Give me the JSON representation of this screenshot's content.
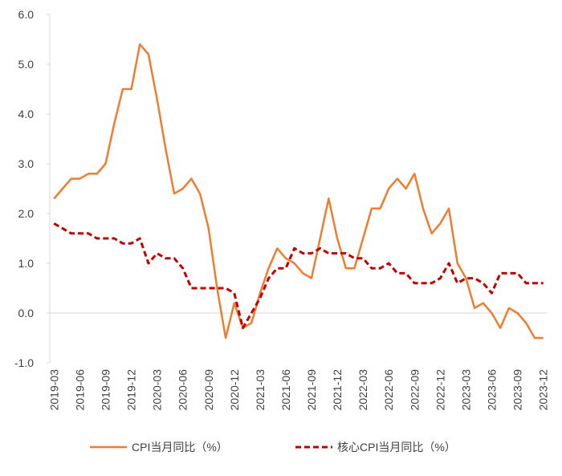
{
  "chart_data": {
    "type": "line",
    "categories": [
      "2019-03",
      null,
      null,
      "2019-06",
      null,
      null,
      "2019-09",
      null,
      null,
      "2019-12",
      null,
      null,
      "2020-03",
      null,
      null,
      "2020-06",
      null,
      null,
      "2020-09",
      null,
      null,
      "2020-12",
      null,
      null,
      "2021-03",
      null,
      null,
      "2021-06",
      null,
      null,
      "2021-09",
      null,
      null,
      "2021-12",
      null,
      null,
      "2022-03",
      null,
      null,
      "2022-06",
      null,
      null,
      "2022-09",
      null,
      null,
      "2022-12",
      null,
      null,
      "2023-03",
      null,
      null,
      "2023-06",
      null,
      null,
      "2023-09",
      null,
      null,
      "2023-12"
    ],
    "series": [
      {
        "name": "CPI当月同比（%）",
        "color": "#ED7D31",
        "dash": false,
        "values": [
          2.3,
          2.5,
          2.7,
          2.7,
          2.8,
          2.8,
          3.0,
          3.8,
          4.5,
          4.5,
          5.4,
          5.2,
          4.3,
          3.3,
          2.4,
          2.5,
          2.7,
          2.4,
          1.7,
          0.5,
          -0.5,
          0.2,
          -0.3,
          -0.2,
          0.4,
          0.9,
          1.3,
          1.1,
          1.0,
          0.8,
          0.7,
          1.5,
          2.3,
          1.5,
          0.9,
          0.9,
          1.5,
          2.1,
          2.1,
          2.5,
          2.7,
          2.5,
          2.8,
          2.1,
          1.6,
          1.8,
          2.1,
          1.0,
          0.7,
          0.1,
          0.2,
          0.0,
          -0.3,
          0.1,
          0.0,
          -0.2,
          -0.5,
          -0.5
        ]
      },
      {
        "name": "核心CPI当月同比（%）",
        "color": "#C00000",
        "dash": true,
        "values": [
          1.8,
          1.7,
          1.6,
          1.6,
          1.6,
          1.5,
          1.5,
          1.5,
          1.4,
          1.4,
          1.5,
          1.0,
          1.2,
          1.1,
          1.1,
          0.9,
          0.5,
          0.5,
          0.5,
          0.5,
          0.5,
          0.4,
          -0.3,
          0.0,
          0.3,
          0.7,
          0.9,
          0.9,
          1.3,
          1.2,
          1.2,
          1.3,
          1.2,
          1.2,
          1.2,
          1.1,
          1.1,
          0.9,
          0.9,
          1.0,
          0.8,
          0.8,
          0.6,
          0.6,
          0.6,
          0.7,
          1.0,
          0.6,
          0.7,
          0.7,
          0.6,
          0.4,
          0.8,
          0.8,
          0.8,
          0.6,
          0.6,
          0.6
        ]
      }
    ],
    "ylim": [
      -1.0,
      6.0
    ],
    "yticks": [
      {
        "value": -1.0,
        "label": "-1.0"
      },
      {
        "value": 0,
        "label": "0.0"
      },
      {
        "value": 1.0,
        "label": "1.0"
      },
      {
        "value": 2.0,
        "label": "2.0"
      },
      {
        "value": 3.0,
        "label": "3.0"
      },
      {
        "value": 4.0,
        "label": "4.0"
      },
      {
        "value": 5.0,
        "label": "5.0"
      },
      {
        "value": 6.0,
        "label": "6.0"
      }
    ],
    "grid": false,
    "legend": "bottom"
  }
}
